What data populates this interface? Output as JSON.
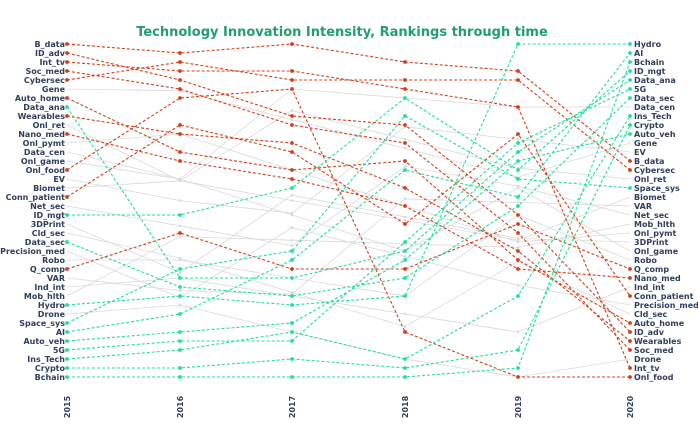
{
  "chart_data": {
    "type": "line",
    "title": "Technology Innovation Intensity, Rankings through time",
    "x": [
      "2015",
      "2016",
      "2017",
      "2018",
      "2019",
      "2020"
    ],
    "rank_2015": [
      "B_data",
      "ID_adv",
      "Int_tv",
      "Soc_med",
      "Cybersec",
      "Gene",
      "Auto_home",
      "Data_ana",
      "Wearables",
      "Onl_ret",
      "Nano_med",
      "Onl_pymt",
      "Data_cen",
      "Onl_game",
      "Onl_food",
      "EV",
      "Biomet",
      "Conn_patient",
      "Net_sec",
      "ID_mgt",
      "3DPrint",
      "Cld_sec",
      "Data_sec",
      "Precision_med",
      "Robo",
      "Q_comp",
      "VAR",
      "Ind_int",
      "Mob_hlth",
      "Hydro",
      "Drone",
      "Space_sys",
      "AI",
      "Auto_veh",
      "5G",
      "Ins_Tech",
      "Crypto",
      "Bchain"
    ],
    "rank_2020": [
      "Hydro",
      "AI",
      "Bchain",
      "ID_mgt",
      "Data_ana",
      "5G",
      "Data_sec",
      "Data_cen",
      "Ins_Tech",
      "Crypto",
      "Auto_veh",
      "Gene",
      "EV",
      "B_data",
      "Cybersec",
      "Onl_ret",
      "Space_sys",
      "Biomet",
      "VAR",
      "Net_sec",
      "Mob_hlth",
      "Onl_pymt",
      "3DPrint",
      "Onl_game",
      "Robo",
      "Q_comp",
      "Nano_med",
      "Ind_int",
      "Conn_patient",
      "Precision_med",
      "Cld_sec",
      "Auto_home",
      "ID_adv",
      "Wearables",
      "Soc_med",
      "Drone",
      "Int_tv",
      "Onl_food"
    ],
    "series": [
      {
        "name": "B_data",
        "group": "declining",
        "ranks": [
          1,
          2,
          1,
          3,
          4,
          14
        ]
      },
      {
        "name": "ID_adv",
        "group": "declining",
        "ranks": [
          2,
          5,
          9,
          10,
          20,
          33
        ]
      },
      {
        "name": "Int_tv",
        "group": "declining",
        "ranks": [
          3,
          4,
          4,
          6,
          8,
          37
        ]
      },
      {
        "name": "Soc_med",
        "group": "declining",
        "ranks": [
          4,
          6,
          10,
          12,
          22,
          35
        ]
      },
      {
        "name": "Cybersec",
        "group": "declining",
        "ranks": [
          5,
          3,
          5,
          5,
          5,
          15
        ]
      },
      {
        "name": "Auto_home",
        "group": "declining",
        "ranks": [
          7,
          13,
          15,
          14,
          25,
          32
        ]
      },
      {
        "name": "Wearables",
        "group": "declining",
        "ranks": [
          9,
          11,
          12,
          17,
          24,
          34
        ]
      },
      {
        "name": "Nano_med",
        "group": "declining",
        "ranks": [
          11,
          14,
          16,
          19,
          26,
          27
        ]
      },
      {
        "name": "Onl_food",
        "group": "declining",
        "ranks": [
          15,
          7,
          6,
          33,
          38,
          38
        ]
      },
      {
        "name": "Conn_patient",
        "group": "declining",
        "ranks": [
          18,
          10,
          13,
          21,
          11,
          29
        ]
      },
      {
        "name": "Q_comp",
        "group": "declining",
        "ranks": [
          26,
          22,
          26,
          26,
          21,
          26
        ]
      },
      {
        "name": "Data_sec",
        "group": "rising",
        "ranks": [
          23,
          28,
          29,
          27,
          19,
          7
        ]
      },
      {
        "name": "Hydro",
        "group": "rising",
        "ranks": [
          30,
          29,
          30,
          29,
          1,
          1
        ]
      },
      {
        "name": "ID_mgt",
        "group": "rising",
        "ranks": [
          20,
          20,
          17,
          7,
          15,
          4
        ]
      },
      {
        "name": "Space_sys",
        "group": "rising",
        "ranks": [
          32,
          26,
          24,
          9,
          16,
          17
        ]
      },
      {
        "name": "AI",
        "group": "rising",
        "ranks": [
          33,
          31,
          25,
          15,
          18,
          2
        ]
      },
      {
        "name": "Auto_veh",
        "group": "rising",
        "ranks": [
          34,
          33,
          32,
          25,
          14,
          11
        ]
      },
      {
        "name": "5G",
        "group": "rising",
        "ranks": [
          35,
          34,
          34,
          23,
          12,
          6
        ]
      },
      {
        "name": "Ins_Tech",
        "group": "rising",
        "ranks": [
          36,
          35,
          33,
          36,
          29,
          9
        ]
      },
      {
        "name": "Crypto",
        "group": "rising",
        "ranks": [
          37,
          37,
          36,
          37,
          35,
          10
        ]
      },
      {
        "name": "Bchain",
        "group": "rising",
        "ranks": [
          38,
          38,
          38,
          38,
          37,
          3
        ]
      },
      {
        "name": "Data_ana",
        "group": "rising",
        "ranks": [
          8,
          27,
          27,
          24,
          13,
          5
        ]
      }
    ],
    "colors": {
      "declining": "#d2401b",
      "rising": "#22df9c",
      "other": "#d9d9d9",
      "title": "#1f9e6e",
      "label": "#2f3e5c"
    },
    "ylim": [
      1,
      38
    ],
    "ytype": "rank (1 = top)",
    "grid": false,
    "legend": "none"
  }
}
